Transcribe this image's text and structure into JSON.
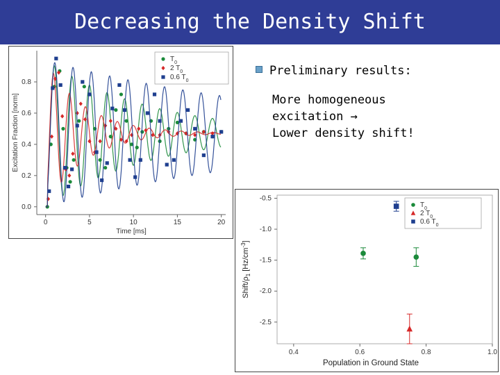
{
  "slide": {
    "title": "Decreasing the Density Shift",
    "bullet": "Preliminary results:",
    "body_lines": [
      "More homogeneous",
      "excitation →",
      "Lower density shift!"
    ],
    "title_bar_color": "#2f3d96",
    "bullet_color": "#6aa1c9"
  },
  "chart_data": [
    {
      "type": "line",
      "xlabel": "Time [ms]",
      "ylabel": "Excitation Fraction [norm]",
      "xlim": [
        -1,
        20.5
      ],
      "ylim": [
        -0.05,
        1.0
      ],
      "xticks": [
        "0",
        "5",
        "10",
        "15",
        "20"
      ],
      "xtick_values": [
        0,
        5,
        10,
        15,
        20
      ],
      "yticks": [
        "0.0",
        "0.2",
        "0.4",
        "0.6",
        "0.8"
      ],
      "ytick_values": [
        0,
        0.2,
        0.4,
        0.6,
        0.8
      ],
      "legend_position": "top-right",
      "legend": [
        {
          "marker": "circle",
          "color": "#1b8a3a",
          "main": "T",
          "sub": "0"
        },
        {
          "marker": "diamond",
          "color": "#d62828",
          "main": "2 T",
          "sub": "0"
        },
        {
          "marker": "square",
          "color": "#1f3f8f",
          "main": "0.6 T",
          "sub": "0"
        }
      ],
      "series": [
        {
          "marker": "circle",
          "color": "#1b8a3a",
          "model": {
            "A": 0.47,
            "offset": 0.47,
            "tau": 12,
            "freq": 0.5,
            "phase": 0.0
          },
          "points": [
            [
              0.2,
              0.0
            ],
            [
              0.6,
              0.4
            ],
            [
              1.0,
              0.77
            ],
            [
              1.6,
              0.87
            ],
            [
              2.0,
              0.5
            ],
            [
              2.4,
              0.25
            ],
            [
              2.8,
              0.16
            ],
            [
              3.2,
              0.3
            ],
            [
              3.8,
              0.55
            ],
            [
              4.4,
              0.77
            ],
            [
              5.0,
              0.72
            ],
            [
              5.6,
              0.5
            ],
            [
              6.2,
              0.3
            ],
            [
              6.8,
              0.25
            ],
            [
              7.4,
              0.45
            ],
            [
              8.0,
              0.62
            ],
            [
              8.6,
              0.72
            ],
            [
              9.2,
              0.55
            ],
            [
              9.8,
              0.4
            ],
            [
              10.4,
              0.38
            ],
            [
              11.0,
              0.48
            ],
            [
              12.0,
              0.55
            ],
            [
              13.0,
              0.42
            ],
            [
              14.0,
              0.5
            ],
            [
              15.0,
              0.54
            ],
            [
              16.0,
              0.47
            ],
            [
              17.0,
              0.43
            ],
            [
              18.0,
              0.48
            ],
            [
              19.0,
              0.45
            ],
            [
              20.0,
              0.48
            ]
          ]
        },
        {
          "marker": "diamond",
          "color": "#d62828",
          "model": {
            "A": 0.47,
            "offset": 0.47,
            "tau": 4.5,
            "freq": 0.55,
            "phase": 0.0
          },
          "points": [
            [
              0.3,
              0.05
            ],
            [
              0.7,
              0.45
            ],
            [
              1.1,
              0.82
            ],
            [
              1.5,
              0.86
            ],
            [
              1.9,
              0.58
            ],
            [
              2.3,
              0.24
            ],
            [
              2.7,
              0.2
            ],
            [
              3.1,
              0.34
            ],
            [
              3.6,
              0.6
            ],
            [
              4.0,
              0.66
            ],
            [
              4.5,
              0.56
            ],
            [
              5.0,
              0.42
            ],
            [
              5.6,
              0.35
            ],
            [
              6.2,
              0.42
            ],
            [
              6.8,
              0.52
            ],
            [
              7.4,
              0.55
            ],
            [
              8.0,
              0.5
            ],
            [
              8.6,
              0.43
            ],
            [
              9.2,
              0.42
            ],
            [
              9.8,
              0.46
            ],
            [
              10.6,
              0.5
            ],
            [
              11.4,
              0.49
            ],
            [
              12.2,
              0.46
            ],
            [
              13.0,
              0.46
            ],
            [
              14.0,
              0.48
            ],
            [
              15.0,
              0.47
            ],
            [
              16.0,
              0.47
            ],
            [
              17.0,
              0.46
            ],
            [
              18.0,
              0.48
            ],
            [
              19.0,
              0.47
            ]
          ]
        },
        {
          "marker": "square",
          "color": "#1f3f8f",
          "model": {
            "A": 0.47,
            "offset": 0.47,
            "tau": 30,
            "freq": 0.48,
            "phase": 0.0
          },
          "points": [
            [
              0.4,
              0.1
            ],
            [
              0.8,
              0.76
            ],
            [
              1.2,
              0.95
            ],
            [
              1.7,
              0.78
            ],
            [
              2.2,
              0.25
            ],
            [
              2.6,
              0.13
            ],
            [
              3.0,
              0.24
            ],
            [
              3.6,
              0.52
            ],
            [
              4.2,
              0.8
            ],
            [
              5.0,
              0.72
            ],
            [
              5.8,
              0.35
            ],
            [
              6.4,
              0.17
            ],
            [
              7.0,
              0.28
            ],
            [
              7.6,
              0.63
            ],
            [
              8.4,
              0.78
            ],
            [
              9.0,
              0.62
            ],
            [
              9.6,
              0.3
            ],
            [
              10.2,
              0.19
            ],
            [
              10.8,
              0.3
            ],
            [
              11.6,
              0.6
            ],
            [
              12.4,
              0.72
            ],
            [
              13.0,
              0.55
            ],
            [
              13.8,
              0.27
            ],
            [
              14.6,
              0.3
            ],
            [
              15.4,
              0.55
            ],
            [
              16.2,
              0.62
            ],
            [
              17.0,
              0.5
            ],
            [
              18.0,
              0.33
            ],
            [
              19.0,
              0.45
            ],
            [
              20.0,
              0.48
            ]
          ]
        }
      ]
    },
    {
      "type": "scatter",
      "xlabel": "Population in Ground State",
      "ylabel_main": "Shift/ρ",
      "ylabel_sub": "1",
      "ylabel_unit": " [Hz/cm",
      "ylabel_exp": "-3",
      "ylabel_end": "]",
      "xlim": [
        0.35,
        1.0
      ],
      "ylim": [
        -2.85,
        -0.45
      ],
      "xticks": [
        "0.4",
        "0.6",
        "0.8",
        "1.0"
      ],
      "xtick_values": [
        0.4,
        0.6,
        0.8,
        1.0
      ],
      "yticks": [
        "-0.5",
        "-1.0",
        "-1.5",
        "-2.0",
        "-2.5"
      ],
      "ytick_values": [
        -0.5,
        -1.0,
        -1.5,
        -2.0,
        -2.5
      ],
      "legend_position": "top-right",
      "legend": [
        {
          "marker": "circle",
          "color": "#1b8a3a",
          "main": "T",
          "sub": "0"
        },
        {
          "marker": "triangle",
          "color": "#d62828",
          "main": "2 T",
          "sub": "0"
        },
        {
          "marker": "square",
          "color": "#1f3f8f",
          "main": "0.6 T",
          "sub": "0"
        }
      ],
      "series": [
        {
          "marker": "circle",
          "color": "#1b8a3a",
          "points": [
            {
              "x": 0.61,
              "y": -1.39,
              "err": 0.09
            },
            {
              "x": 0.77,
              "y": -1.45,
              "err": 0.15
            }
          ]
        },
        {
          "marker": "triangle",
          "color": "#d62828",
          "points": [
            {
              "x": 0.75,
              "y": -2.61,
              "err": 0.24
            }
          ]
        },
        {
          "marker": "square",
          "color": "#1f3f8f",
          "points": [
            {
              "x": 0.71,
              "y": -0.63,
              "err": 0.08
            }
          ]
        }
      ]
    }
  ]
}
